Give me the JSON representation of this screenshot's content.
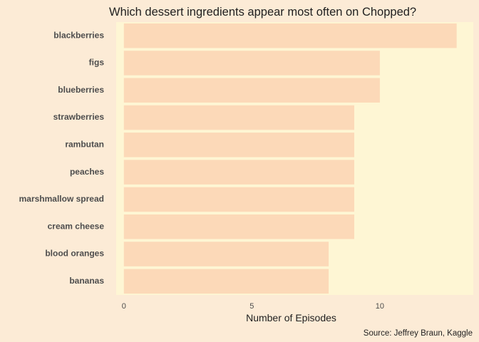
{
  "colors": {
    "background": "#FCEBD6",
    "panel": "#FEF6D4",
    "bar": "#FCD9B8",
    "text": "#1F1F1F",
    "label_text": "#4D4D4D"
  },
  "chart_data": {
    "type": "bar",
    "orientation": "horizontal",
    "title": "Which dessert ingredients appear most often on Chopped?",
    "xlabel": "Number of Episodes",
    "ylabel": "",
    "caption": "Source: Jeffrey Braun, Kaggle",
    "categories": [
      "blackberries",
      "figs",
      "blueberries",
      "strawberries",
      "rambutan",
      "peaches",
      "marshmallow spread",
      "cream cheese",
      "blood oranges",
      "bananas"
    ],
    "values": [
      13,
      10,
      10,
      9,
      9,
      9,
      9,
      9,
      8,
      8
    ],
    "xlim": [
      -0.3,
      13.65
    ],
    "xticks": [
      0,
      5,
      10
    ],
    "grid": false,
    "legend": "none"
  }
}
